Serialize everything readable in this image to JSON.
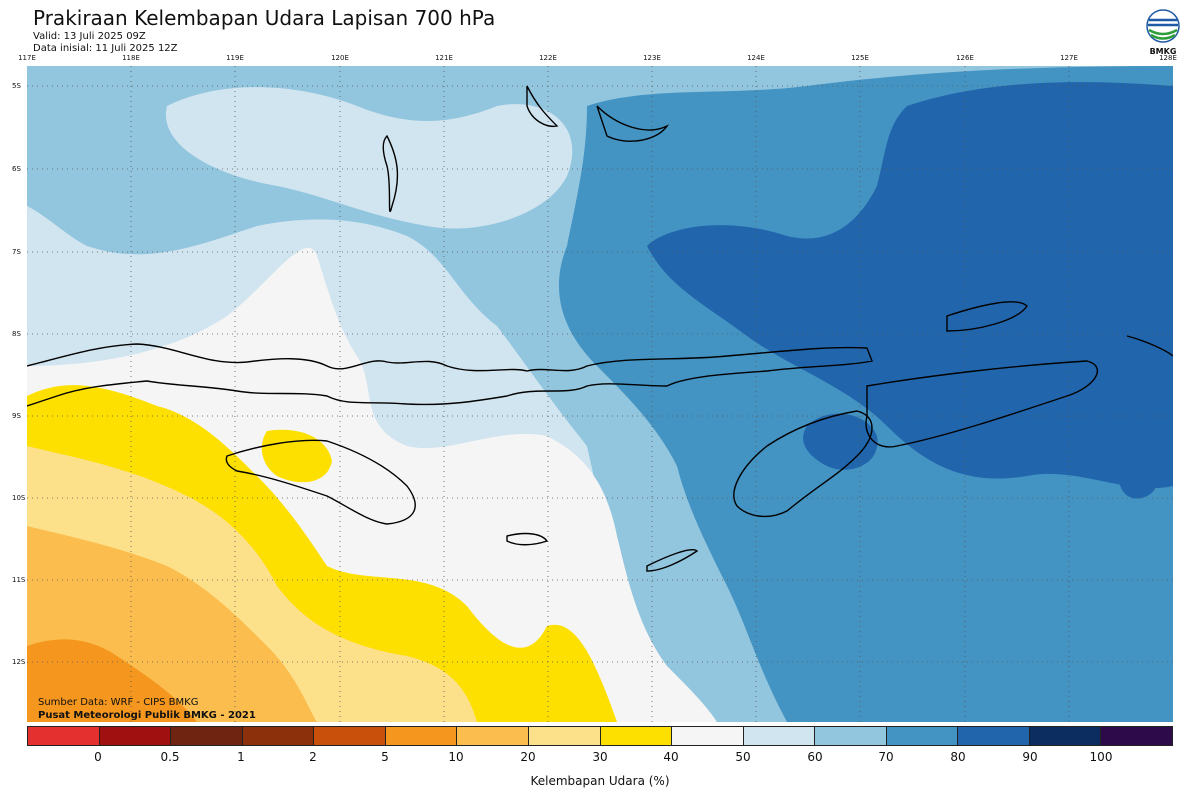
{
  "title": "Prakiraan Kelembapan Udara Lapisan 700 hPa",
  "valid": "Valid: 13 Juli 2025 09Z",
  "init": "Data inisial: 11 Juli 2025 12Z",
  "logo_text": "BMKG",
  "source_line1": "Sumber Data: WRF - CIPS BMKG",
  "source_line2": "Pusat Meteorologi Publik BMKG - 2021",
  "lon_labels": [
    "117E",
    "118E",
    "119E",
    "120E",
    "121E",
    "122E",
    "123E",
    "124E",
    "125E",
    "126E",
    "127E",
    "128E"
  ],
  "lat_labels": [
    "5S",
    "6S",
    "7S",
    "8S",
    "9S",
    "10S",
    "11S",
    "12S"
  ],
  "colorbar_title": "Kelembapan Udara (%)",
  "colorbar_ticks": [
    "0",
    "0.5",
    "1",
    "2",
    "5",
    "10",
    "20",
    "30",
    "40",
    "50",
    "60",
    "70",
    "80",
    "90",
    "100"
  ],
  "colorbar_colors": [
    "#e53030",
    "#a01010",
    "#6e2410",
    "#8c300c",
    "#c8500a",
    "#f5961e",
    "#fbbd4e",
    "#fde08a",
    "#fde000",
    "#f5f5f5",
    "#d1e5f0",
    "#92c5de",
    "#4393c3",
    "#2166ac",
    "#0b2d5f",
    "#2d0a4a"
  ],
  "legend_colors": {
    "h20_30": "#fde08a",
    "h10_20": "#fbbd4e",
    "h5_10": "#f5961e",
    "h30_40": "#fde000",
    "h40_50": "#f5f5f5",
    "h50_60": "#d1e5f0",
    "h60_70": "#92c5de",
    "h70_80": "#4393c3",
    "h80_90": "#2166ac"
  }
}
